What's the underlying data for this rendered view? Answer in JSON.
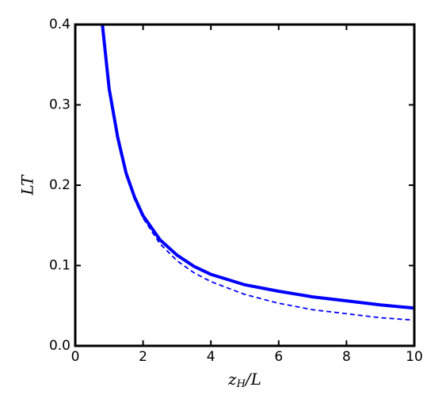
{
  "chart_data": {
    "type": "line",
    "xlabel": {
      "base": "z",
      "sub": "H",
      "rest": "/L"
    },
    "ylabel": "LT",
    "x": [
      0.8,
      1,
      1.25,
      1.5,
      1.75,
      2,
      2.5,
      3,
      3.5,
      4,
      5,
      6,
      7,
      8,
      9,
      10
    ],
    "series": [
      {
        "color": "#0000ff",
        "dash": "solid",
        "values": [
          0.4,
          0.32,
          0.26,
          0.215,
          0.185,
          0.162,
          0.132,
          0.113,
          0.099,
          0.089,
          0.076,
          0.068,
          0.061,
          0.056,
          0.051,
          0.047
        ]
      },
      {
        "color": "#0000ff",
        "dash": "dashed",
        "values": [
          0.398,
          0.318,
          0.255,
          0.212,
          0.182,
          0.159,
          0.127,
          0.106,
          0.091,
          0.08,
          0.064,
          0.053,
          0.045,
          0.04,
          0.035,
          0.032
        ]
      }
    ],
    "xlim": [
      0,
      10
    ],
    "ylim": [
      0,
      0.4
    ],
    "xticks": [
      0,
      2,
      4,
      6,
      8,
      10
    ],
    "yticks": [
      {
        "value": 0,
        "label": "0.0"
      },
      0.1,
      0.2,
      0.3,
      0.4
    ]
  }
}
